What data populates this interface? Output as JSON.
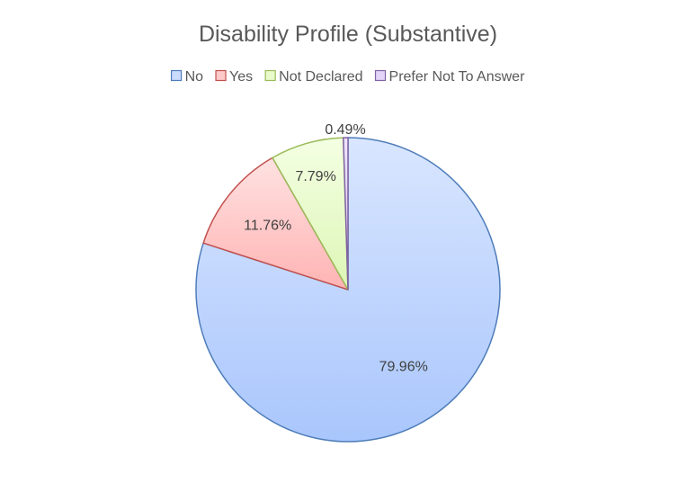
{
  "chart_data": {
    "type": "pie",
    "title": "Disability Profile (Substantive)",
    "legend_position": "top",
    "categories": [
      "No",
      "Yes",
      "Not Declared",
      "Prefer Not To Answer"
    ],
    "values": [
      79.96,
      11.76,
      7.79,
      0.49
    ],
    "data_labels": [
      "79.96%",
      "11.76%",
      "7.79%",
      "0.49%"
    ],
    "colors": {
      "fill": [
        "#C9DBFE",
        "#FFC9C9",
        "#E9FBCB",
        "#E3D4F8"
      ],
      "stroke": [
        "#4F7DB9",
        "#C0504D",
        "#9BBB59",
        "#8064A2"
      ]
    }
  }
}
